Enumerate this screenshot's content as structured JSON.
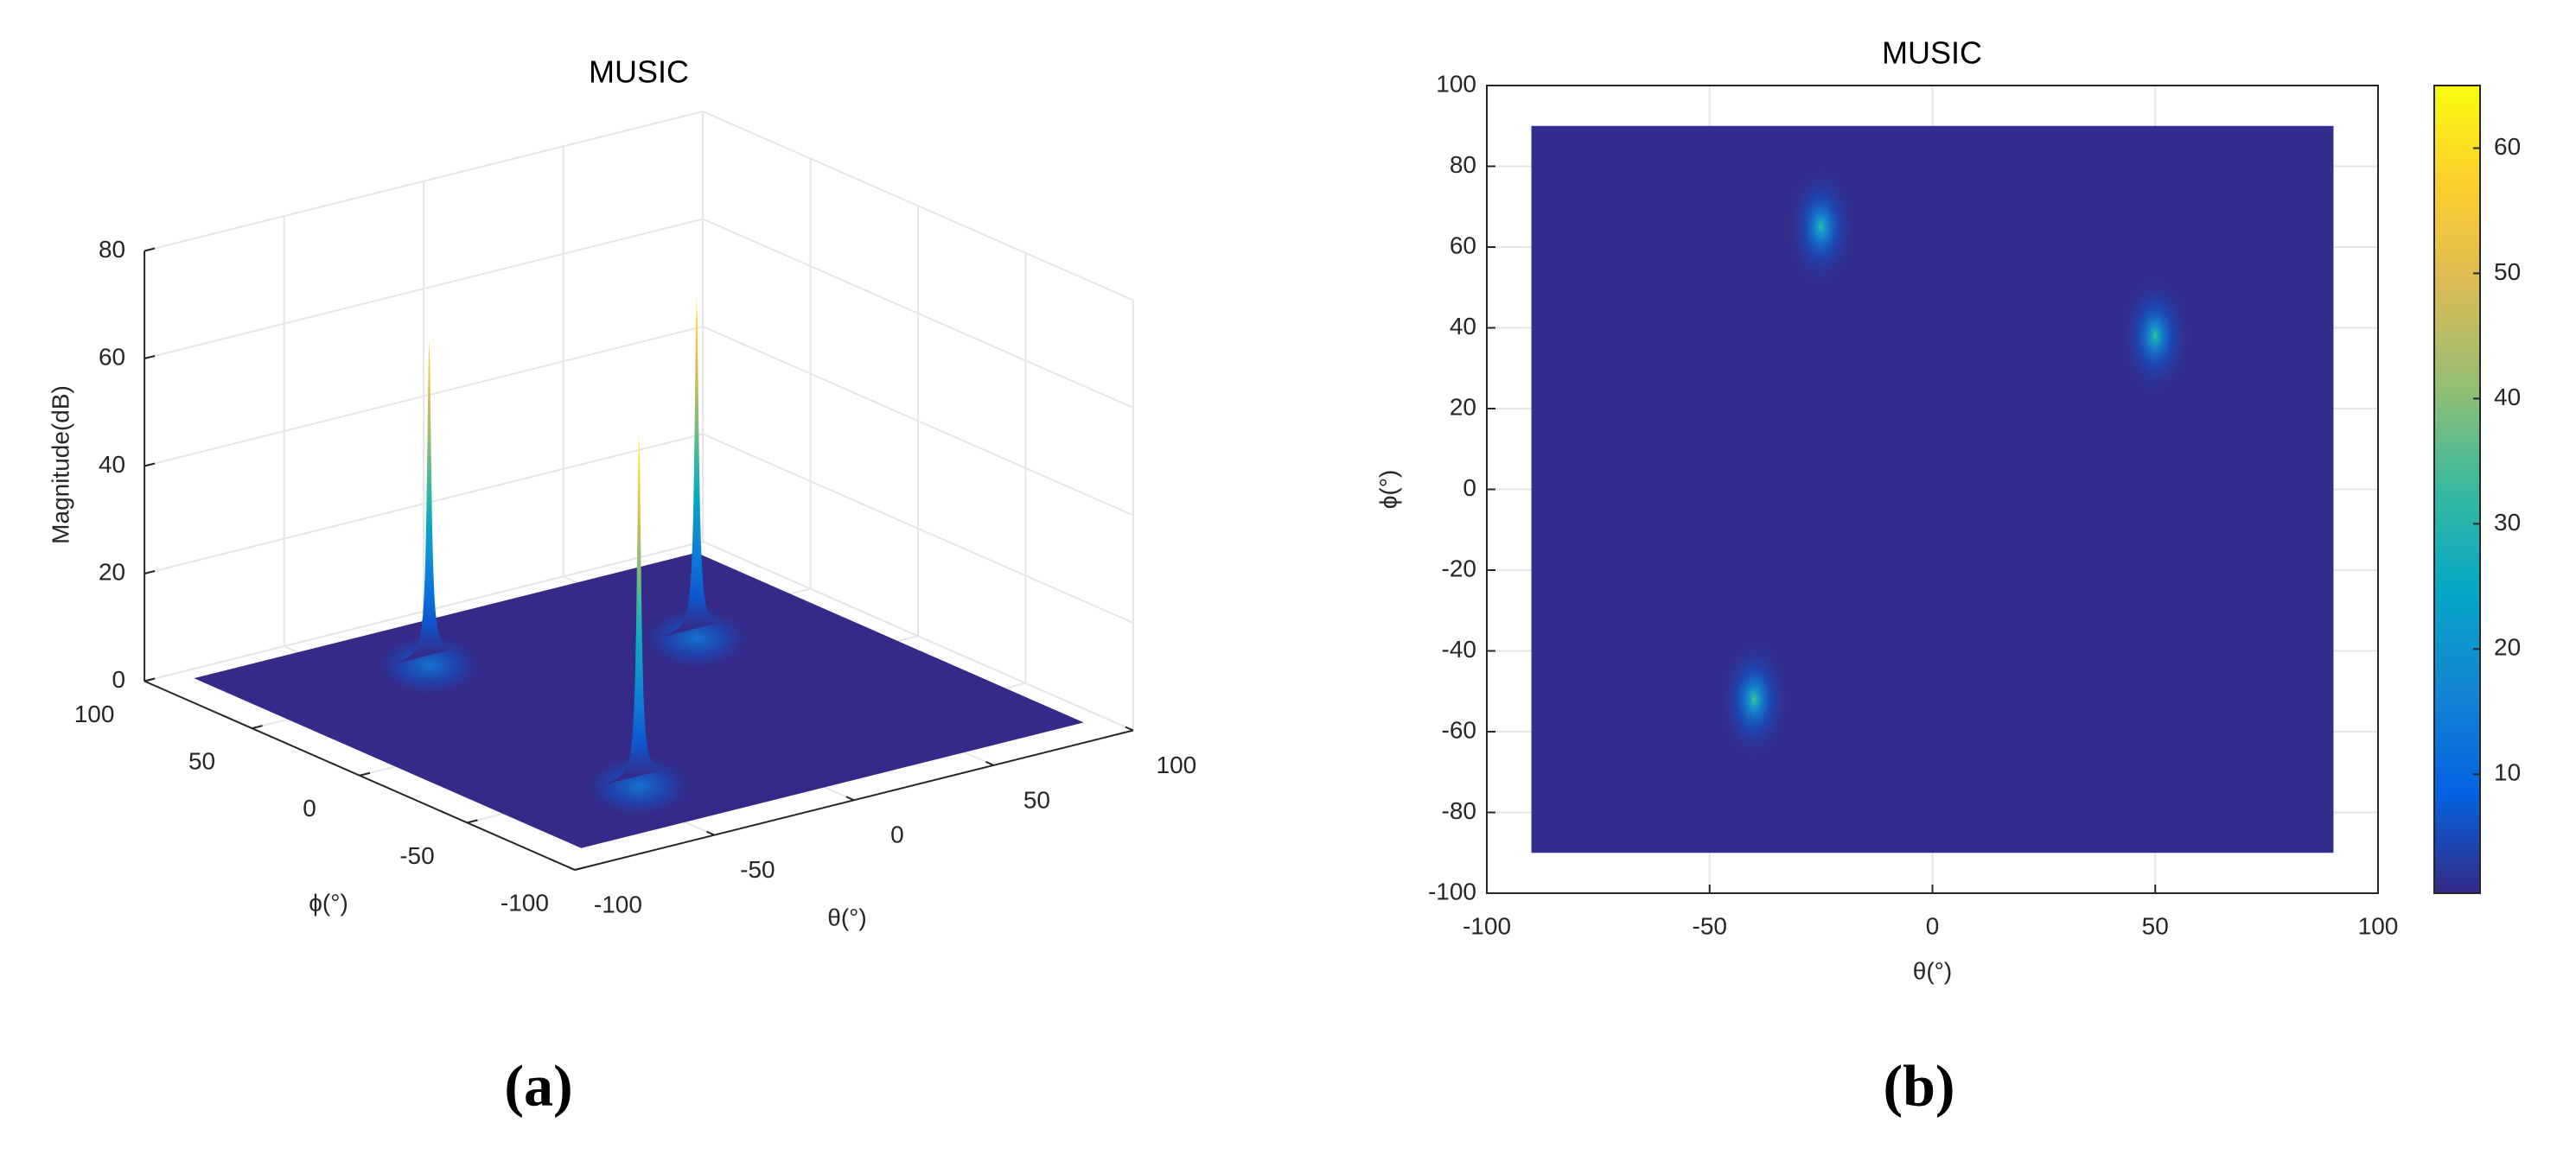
{
  "chart_data": [
    {
      "type": "surface3d",
      "title": "MUSIC",
      "panel": "(a)",
      "xlabel": "θ(°)",
      "ylabel": "ϕ(°)",
      "zlabel": "Magnitude(dB)",
      "xlim": [
        -100,
        100
      ],
      "xticks": [
        -100,
        -50,
        0,
        50,
        100
      ],
      "ylim": [
        -100,
        100
      ],
      "yticks": [
        -100,
        -50,
        0,
        50,
        100
      ],
      "zlim": [
        0,
        80
      ],
      "zticks": [
        0,
        20,
        40,
        60,
        80
      ],
      "extent": [
        -90,
        90
      ],
      "floor": 1,
      "peaks": {
        "theta": [
          -25,
          50,
          -40
        ],
        "phi": [
          65,
          38,
          -52
        ],
        "magnitude": [
          60,
          63,
          65
        ]
      },
      "colormap": "parula",
      "grid": true
    },
    {
      "type": "heatmap",
      "title": "MUSIC",
      "panel": "(b)",
      "xlabel": "θ(°)",
      "ylabel": "ϕ(°)",
      "xlim": [
        -100,
        100
      ],
      "xticks": [
        -100,
        -50,
        0,
        50,
        100
      ],
      "ylim": [
        -100,
        100
      ],
      "yticks": [
        -100,
        -80,
        -60,
        -40,
        -20,
        0,
        20,
        40,
        60,
        80,
        100
      ],
      "extent": [
        -90,
        90
      ],
      "floor": 1,
      "peaks": {
        "theta": [
          -25,
          50,
          -40
        ],
        "phi": [
          65,
          38,
          -52
        ],
        "magnitude": [
          60,
          63,
          65
        ]
      },
      "clim": [
        0.5,
        65
      ],
      "cticks": [
        10,
        20,
        30,
        40,
        50,
        60
      ],
      "colormap": "parula",
      "grid": true
    }
  ]
}
